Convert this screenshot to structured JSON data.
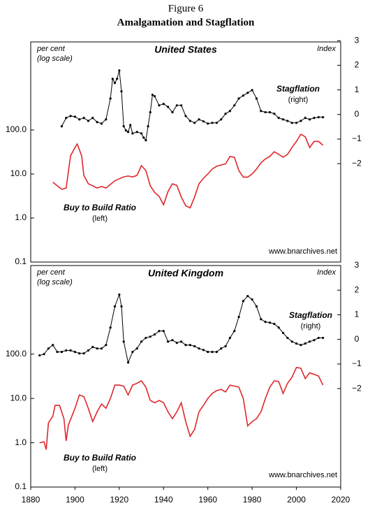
{
  "figure": {
    "label": "Figure 6",
    "title": "Amalgamation and Stagflation"
  },
  "chart_data": [
    {
      "type": "line",
      "title": "United States",
      "ylabel": "per cent",
      "ylabel_note": "(log scale)",
      "y2label": "Index",
      "source": "www.bnarchives.net",
      "ylog": true,
      "xlim": [
        1880,
        2020
      ],
      "ylim": [
        0.1,
        10000
      ],
      "yticks": [
        0.1,
        {
          "value": 1,
          "label": "1.0"
        },
        {
          "value": 10,
          "label": "10.0"
        },
        {
          "value": 100,
          "label": "100.0"
        }
      ],
      "y2lim": [
        -6,
        2.95
      ],
      "y2ticks": [
        3,
        2,
        1,
        0,
        {
          "value": -1,
          "label": "−1"
        },
        {
          "value": -2,
          "label": "−2"
        }
      ],
      "series": [
        {
          "name": "Stagflation",
          "note": "(right)",
          "axis": "y2",
          "color": "#000000",
          "marker": true,
          "x": [
            1894,
            1896,
            1898,
            1900,
            1902,
            1904,
            1906,
            1908,
            1910,
            1912,
            1914,
            1916,
            1917,
            1918,
            1919,
            1920,
            1921,
            1922,
            1923,
            1924,
            1925,
            1926,
            1928,
            1930,
            1931,
            1932,
            1933,
            1934,
            1935,
            1936,
            1938,
            1940,
            1942,
            1944,
            1946,
            1948,
            1950,
            1952,
            1954,
            1956,
            1958,
            1960,
            1962,
            1964,
            1966,
            1968,
            1970,
            1972,
            1974,
            1976,
            1978,
            1980,
            1982,
            1984,
            1986,
            1988,
            1990,
            1992,
            1994,
            1996,
            1998,
            2000,
            2002,
            2004,
            2006,
            2008,
            2010,
            2012
          ],
          "values": [
            -0.48,
            -0.14,
            -0.06,
            -0.09,
            -0.2,
            -0.14,
            -0.26,
            -0.14,
            -0.31,
            -0.37,
            -0.2,
            0.65,
            1.45,
            1.28,
            1.45,
            1.79,
            0.94,
            -0.48,
            -0.65,
            -0.71,
            -0.43,
            -0.77,
            -0.71,
            -0.77,
            -0.94,
            -1.05,
            -0.48,
            0.09,
            0.8,
            0.74,
            0.37,
            0.43,
            0.31,
            0.09,
            0.37,
            0.37,
            -0.06,
            -0.26,
            -0.34,
            -0.2,
            -0.28,
            -0.37,
            -0.34,
            -0.34,
            -0.2,
            0.03,
            0.14,
            0.37,
            0.65,
            0.77,
            0.88,
            0.99,
            0.65,
            0.14,
            0.09,
            0.09,
            0.03,
            -0.14,
            -0.2,
            -0.26,
            -0.34,
            -0.34,
            -0.26,
            -0.14,
            -0.2,
            -0.14,
            -0.11,
            -0.11
          ]
        },
        {
          "name": "Buy to Build Ratio",
          "note": "(left)",
          "color": "#e0262b",
          "marker": false,
          "x": [
            1890,
            1892,
            1894,
            1896,
            1898,
            1900,
            1901,
            1903,
            1904,
            1906,
            1908,
            1910,
            1912,
            1914,
            1916,
            1918,
            1920,
            1922,
            1924,
            1926,
            1928,
            1930,
            1932,
            1934,
            1936,
            1938,
            1940,
            1942,
            1944,
            1946,
            1948,
            1950,
            1952,
            1954,
            1956,
            1958,
            1960,
            1962,
            1964,
            1966,
            1968,
            1970,
            1972,
            1974,
            1976,
            1978,
            1980,
            1982,
            1984,
            1986,
            1988,
            1990,
            1992,
            1994,
            1996,
            1998,
            2000,
            2002,
            2004,
            2006,
            2008,
            2010,
            2012
          ],
          "values": [
            6.5,
            5.4,
            4.5,
            4.8,
            26,
            40,
            48,
            26,
            9.3,
            6,
            5.4,
            4.8,
            5.2,
            4.8,
            5.8,
            7,
            7.8,
            8.6,
            9,
            8.6,
            9.3,
            15.5,
            12,
            5.4,
            3.8,
            3.1,
            2,
            4,
            6,
            5.5,
            3,
            1.9,
            1.7,
            3,
            6,
            8,
            10,
            13,
            15,
            16,
            17,
            25,
            24,
            12,
            8.5,
            8.5,
            10,
            13,
            18,
            22,
            25,
            32,
            28,
            24,
            28,
            40,
            55,
            80,
            70,
            40,
            55,
            55,
            45
          ]
        }
      ]
    },
    {
      "type": "line",
      "title": "United Kingdom",
      "ylabel": "per cent",
      "ylabel_note": "(log scale)",
      "y2label": "Index",
      "source": "www.bnarchives.net",
      "ylog": true,
      "xlim": [
        1880,
        2020
      ],
      "xticks": [
        1880,
        1900,
        1920,
        1940,
        1960,
        1980,
        2000,
        2020
      ],
      "ylim": [
        0.1,
        10000
      ],
      "yticks": [
        0.1,
        {
          "value": 1,
          "label": "1.0"
        },
        {
          "value": 10,
          "label": "10.0"
        },
        {
          "value": 100,
          "label": "100.0"
        }
      ],
      "y2lim": [
        -6,
        3
      ],
      "y2ticks": [
        3,
        2,
        1,
        0,
        {
          "value": -1,
          "label": "−1"
        },
        {
          "value": -2,
          "label": "−2"
        }
      ],
      "series": [
        {
          "name": "Stagflation",
          "note": "(right)",
          "axis": "y2",
          "color": "#000000",
          "marker": true,
          "x": [
            1884,
            1886,
            1888,
            1890,
            1892,
            1894,
            1896,
            1898,
            1900,
            1902,
            1904,
            1906,
            1908,
            1910,
            1912,
            1914,
            1916,
            1918,
            1920,
            1921,
            1922,
            1924,
            1926,
            1928,
            1930,
            1932,
            1934,
            1936,
            1938,
            1940,
            1942,
            1944,
            1946,
            1948,
            1950,
            1952,
            1954,
            1956,
            1958,
            1960,
            1962,
            1964,
            1966,
            1968,
            1970,
            1972,
            1974,
            1976,
            1978,
            1980,
            1982,
            1984,
            1986,
            1988,
            1990,
            1992,
            1994,
            1996,
            1998,
            2000,
            2002,
            2004,
            2006,
            2008,
            2010,
            2012
          ],
          "values": [
            -0.65,
            -0.6,
            -0.37,
            -0.23,
            -0.51,
            -0.51,
            -0.45,
            -0.45,
            -0.51,
            -0.57,
            -0.57,
            -0.45,
            -0.31,
            -0.37,
            -0.37,
            -0.23,
            0.48,
            1.34,
            1.82,
            1.34,
            -0.09,
            -0.94,
            -0.51,
            -0.37,
            -0.09,
            0.06,
            0.11,
            0.2,
            0.34,
            0.34,
            -0.09,
            -0.03,
            -0.14,
            -0.09,
            -0.23,
            -0.23,
            -0.28,
            -0.37,
            -0.43,
            -0.51,
            -0.51,
            -0.51,
            -0.37,
            -0.28,
            0.06,
            0.34,
            0.91,
            1.56,
            1.76,
            1.62,
            1.34,
            0.82,
            0.71,
            0.68,
            0.63,
            0.48,
            0.26,
            0.06,
            -0.09,
            -0.17,
            -0.23,
            -0.17,
            -0.09,
            -0.03,
            0.06,
            0.06
          ]
        },
        {
          "name": "Buy to Build Ratio",
          "note": "(left)",
          "color": "#e0262b",
          "marker": false,
          "x": [
            1884,
            1886,
            1887,
            1888,
            1890,
            1891,
            1893,
            1895,
            1896,
            1897,
            1900,
            1902,
            1904,
            1906,
            1908,
            1910,
            1912,
            1914,
            1916,
            1918,
            1920,
            1922,
            1924,
            1926,
            1928,
            1930,
            1932,
            1934,
            1936,
            1938,
            1940,
            1942,
            1944,
            1946,
            1948,
            1950,
            1952,
            1954,
            1956,
            1958,
            1960,
            1962,
            1964,
            1966,
            1968,
            1970,
            1972,
            1974,
            1976,
            1978,
            1980,
            1982,
            1984,
            1986,
            1988,
            1990,
            1992,
            1994,
            1996,
            1998,
            2000,
            2002,
            2004,
            2006,
            2008,
            2010,
            2012
          ],
          "values": [
            1,
            1.05,
            0.7,
            2.8,
            4,
            7,
            7,
            3.5,
            1.1,
            2.5,
            6,
            12,
            11,
            6,
            3,
            5,
            7.5,
            6,
            10,
            20,
            20,
            19,
            12,
            20,
            22,
            25,
            18,
            9,
            8,
            9,
            8,
            5,
            3.5,
            5,
            8,
            3,
            1.4,
            2,
            5,
            7,
            10,
            13,
            15,
            16,
            14,
            20,
            19,
            18,
            10,
            2.4,
            3,
            3.5,
            5,
            10,
            18,
            25,
            24,
            13,
            22,
            30,
            50,
            48,
            28,
            38,
            35,
            32,
            20
          ]
        }
      ]
    }
  ]
}
